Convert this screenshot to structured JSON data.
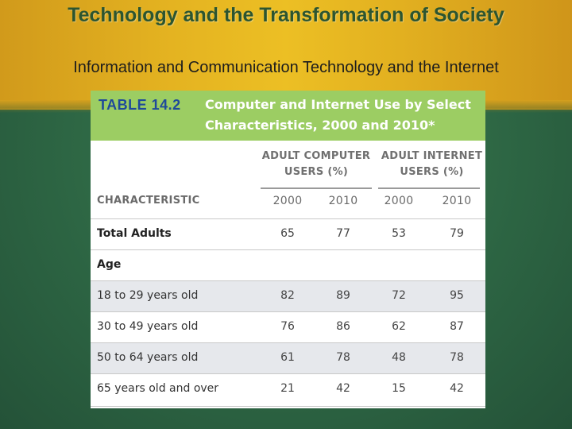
{
  "slide": {
    "title": "Technology and the Transformation of Society",
    "subtitle": "Information and Communication Technology and the Internet"
  },
  "table": {
    "number": "TABLE 14.2",
    "title": "Computer and Internet Use by Select Characteristics, 2000 and 2010*",
    "column_groups": [
      {
        "label": "ADULT COMPUTER USERS (%)"
      },
      {
        "label": "ADULT INTERNET USERS (%)"
      }
    ],
    "characteristic_header": "CHARACTERISTIC",
    "years": [
      "2000",
      "2010",
      "2000",
      "2010"
    ],
    "rows": [
      {
        "label": "Total Adults",
        "values": [
          "65",
          "77",
          "53",
          "79"
        ]
      },
      {
        "label": "Age",
        "values": [
          "",
          "",
          "",
          ""
        ]
      },
      {
        "label": "18 to 29 years old",
        "values": [
          "82",
          "89",
          "72",
          "95"
        ]
      },
      {
        "label": "30 to 49 years old",
        "values": [
          "76",
          "86",
          "62",
          "87"
        ]
      },
      {
        "label": "50 to 64 years old",
        "values": [
          "61",
          "78",
          "48",
          "78"
        ]
      },
      {
        "label": "65 years old and over",
        "values": [
          "21",
          "42",
          "15",
          "42"
        ]
      }
    ]
  },
  "colors": {
    "header_band": "#e4b321",
    "background": "#2f6a46",
    "table_header": "#9ccd63",
    "table_number": "#1f4a9a",
    "shaded_row": "#e6e8ec"
  }
}
